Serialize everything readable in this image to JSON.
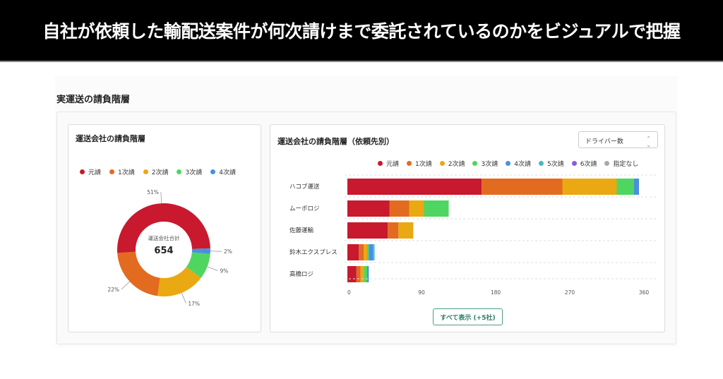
{
  "banner": {
    "title": "自社が依頼した輸配送案件が何次請けまで委託されているのかをビジュアルで把握"
  },
  "section_title": "実運送の請負階層",
  "colors": {
    "元請": "#c8192e",
    "1次請": "#e26b20",
    "2次請": "#eaa812",
    "3次請": "#4fd660",
    "4次請": "#4a8fe2",
    "5次請": "#45b8c4",
    "6次請": "#8a5be6",
    "指定なし": "#a9a9a9"
  },
  "left_card": {
    "title": "運送会社の請負階層",
    "center_label": "運送会社合計",
    "center_value": "654"
  },
  "right_card": {
    "title": "運送会社の請負階層（依頼先別）",
    "select_value": "ドライバー数",
    "select_icon": "updown-chevron-icon",
    "show_all_button": "すべて表示 (+5社)"
  },
  "chart_data": [
    {
      "type": "pie",
      "title": "運送会社の請負階層",
      "legend": [
        "元請",
        "1次請",
        "2次請",
        "3次請",
        "4次請"
      ],
      "labels": [
        "元請",
        "1次請",
        "2次請",
        "3次請",
        "4次請"
      ],
      "values": [
        51,
        22,
        17,
        9,
        2
      ],
      "value_labels": [
        "51%",
        "22%",
        "17%",
        "9%",
        "2%"
      ],
      "total": 654,
      "legend_position": "top"
    },
    {
      "type": "bar",
      "orientation": "horizontal",
      "stacked": true,
      "title": "運送会社の請負階層（依頼先別）",
      "categories": [
        "ハコブ運送",
        "ムーボロジ",
        "佐藤運輸",
        "鈴木エクスプレス",
        "高橋ロジ"
      ],
      "legend": [
        "元請",
        "1次請",
        "2次請",
        "3次請",
        "4次請",
        "5次請",
        "6次請",
        "指定なし"
      ],
      "series": [
        {
          "name": "元請",
          "values": [
            163,
            51,
            49,
            14,
            11
          ]
        },
        {
          "name": "1次請",
          "values": [
            98,
            24,
            13,
            6,
            5
          ]
        },
        {
          "name": "2次請",
          "values": [
            66,
            18,
            18,
            4,
            4
          ]
        },
        {
          "name": "3次請",
          "values": [
            21,
            30,
            0,
            2,
            4
          ]
        },
        {
          "name": "4次請",
          "values": [
            6,
            0,
            0,
            5,
            2
          ]
        },
        {
          "name": "5次請",
          "values": [
            0,
            0,
            0,
            2,
            0
          ]
        },
        {
          "name": "6次請",
          "values": [
            0,
            0,
            0,
            0,
            0
          ]
        },
        {
          "name": "指定なし",
          "values": [
            0,
            0,
            0,
            0,
            0
          ]
        }
      ],
      "xlim": [
        0,
        360
      ],
      "xticks": [
        "0",
        "90",
        "180",
        "270",
        "360"
      ],
      "grid": true,
      "legend_position": "top-right"
    }
  ]
}
